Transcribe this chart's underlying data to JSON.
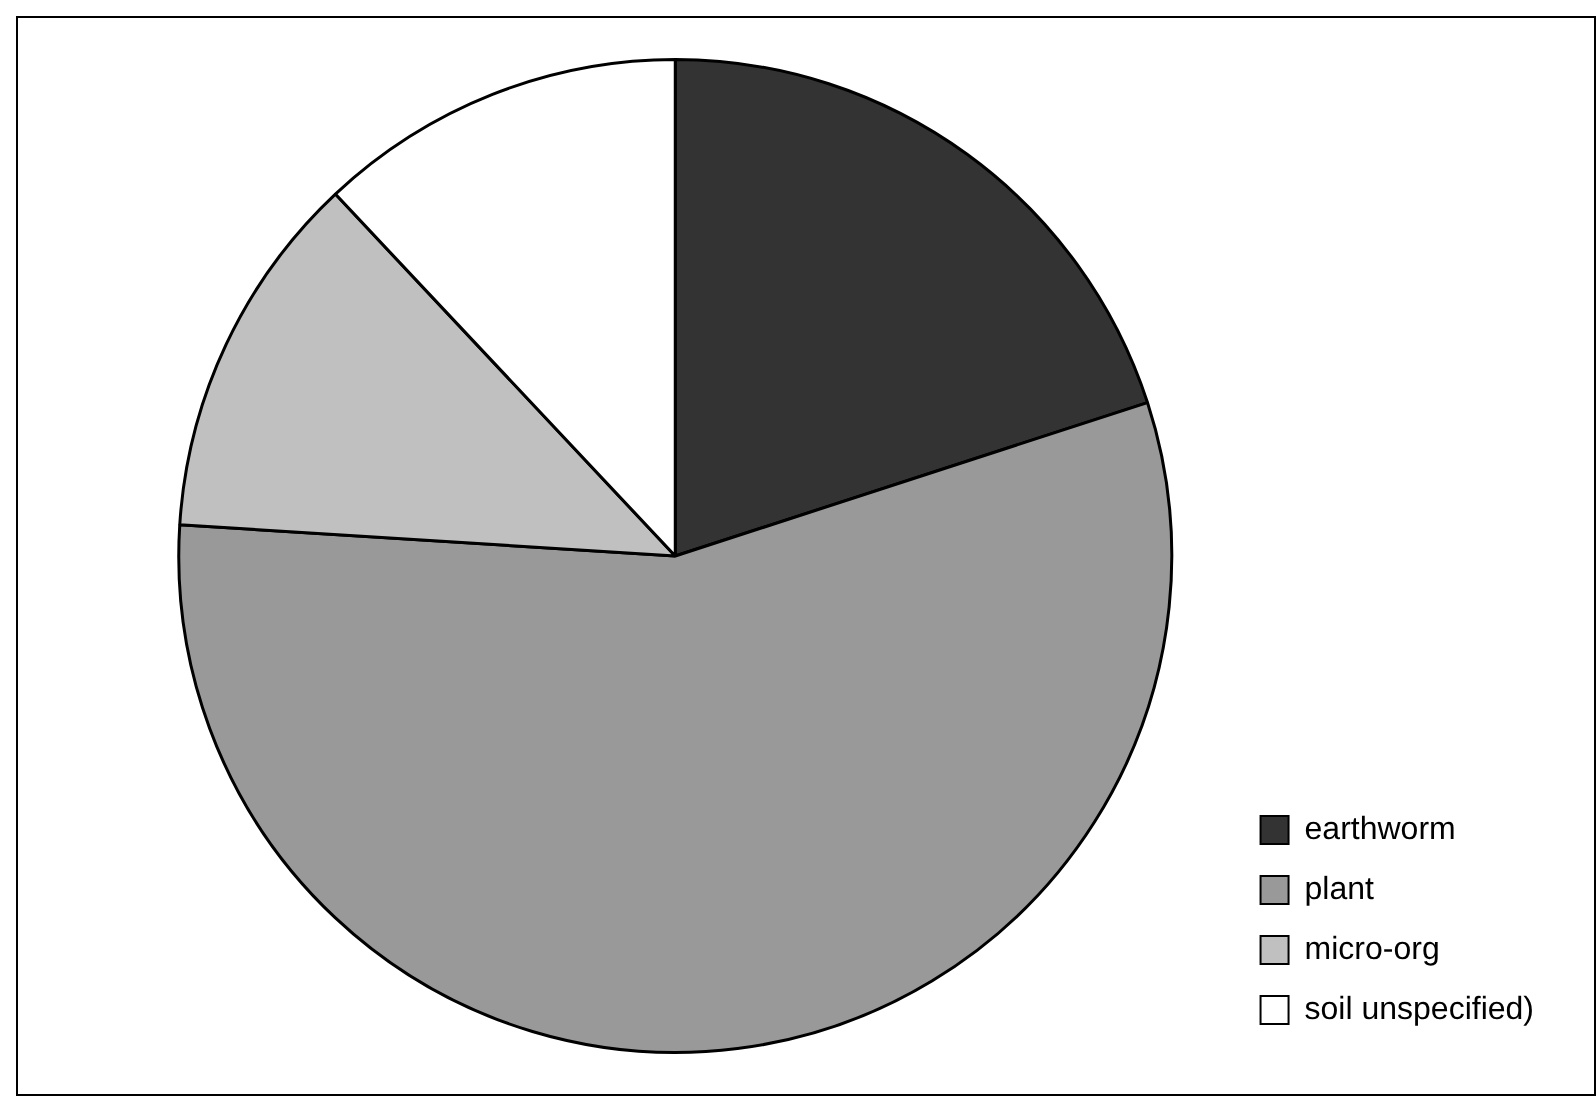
{
  "chart_data": {
    "type": "pie",
    "categories": [
      "earthworm",
      "plant",
      "micro-org",
      "soil unspecified)"
    ],
    "values": [
      20,
      56,
      12,
      12
    ],
    "colors": [
      "#333333",
      "#999999",
      "#c0c0c0",
      "#ffffff"
    ],
    "legend": "bottom right"
  }
}
